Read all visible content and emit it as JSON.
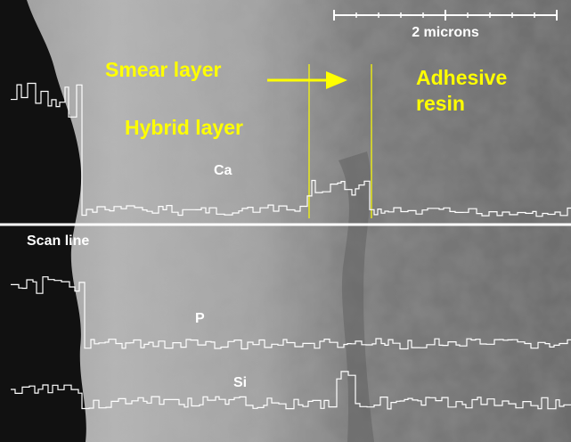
{
  "scale_bar": {
    "label": "2 microns"
  },
  "labels": {
    "smear_layer": "Smear layer",
    "adhesive_resin": [
      "Adhesive",
      "resin"
    ],
    "hybrid_layer": "Hybrid layer",
    "ca": "Ca",
    "scan_line": "Scan line",
    "p": "P",
    "si": "Si"
  }
}
